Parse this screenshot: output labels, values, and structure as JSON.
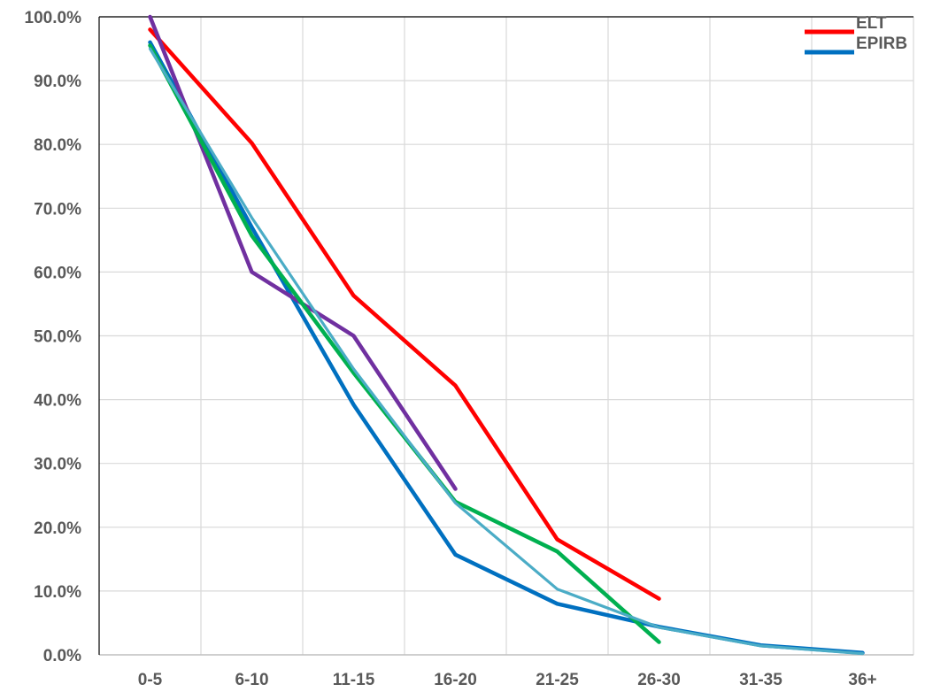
{
  "chart_data": {
    "type": "line",
    "title": "",
    "xlabel": "",
    "ylabel": "",
    "categories": [
      "0-5",
      "6-10",
      "11-15",
      "16-20",
      "21-25",
      "26-30",
      "31-35",
      "36+"
    ],
    "y_ticks": [
      "0.0%",
      "10.0%",
      "20.0%",
      "30.0%",
      "40.0%",
      "50.0%",
      "60.0%",
      "70.0%",
      "80.0%",
      "90.0%",
      "100.0%"
    ],
    "ylim": [
      0,
      100
    ],
    "grid": true,
    "legend_position": "top-right",
    "series": [
      {
        "name": "ELT",
        "color": "#ff0000",
        "values": [
          98.0,
          80.2,
          56.3,
          42.2,
          18.1,
          8.8,
          null,
          null
        ]
      },
      {
        "name": "EPIRB",
        "color": "#0070c0",
        "values": [
          96.0,
          67.0,
          39.2,
          15.7,
          8.0,
          4.4,
          1.5,
          0.3
        ]
      },
      {
        "color": "#7030a0",
        "values": [
          100.0,
          60.0,
          50.0,
          26.0,
          null,
          null,
          null,
          null
        ]
      },
      {
        "color": "#00b050",
        "values": [
          95.5,
          65.7,
          44.2,
          24.0,
          16.2,
          2.0,
          null,
          null
        ]
      },
      {
        "color": "#4bacc6",
        "values": [
          95.0,
          68.5,
          44.8,
          23.8,
          10.3,
          4.3,
          1.4,
          0.2
        ]
      }
    ]
  }
}
